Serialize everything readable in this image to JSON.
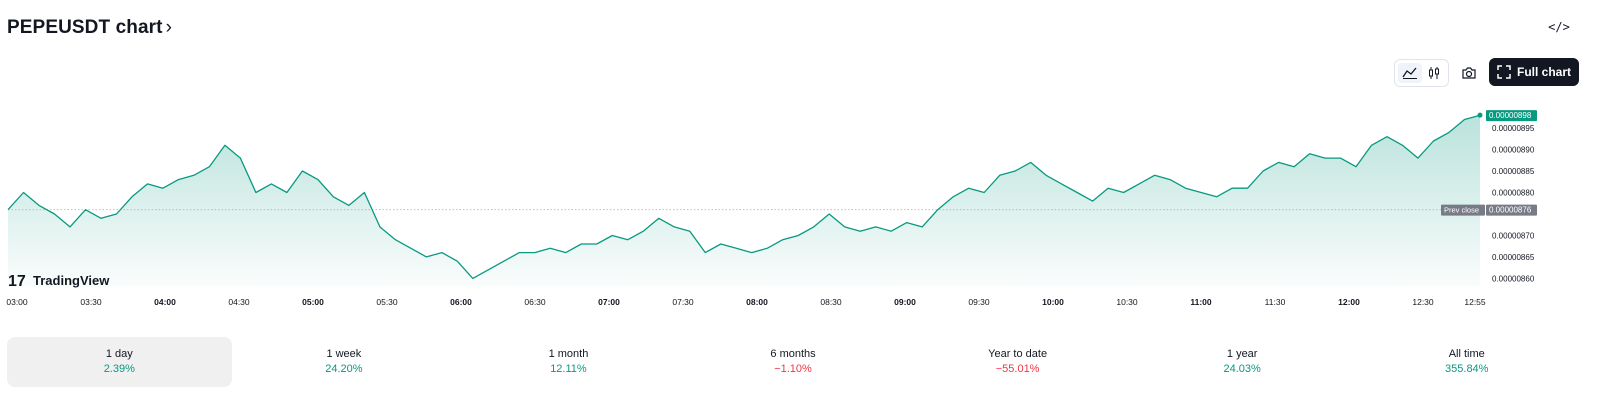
{
  "header": {
    "title": "PEPEUSDT chart",
    "title_chevron": "›",
    "embed_label": "</>"
  },
  "toolbar": {
    "full_chart_label": "Full chart"
  },
  "icons": {
    "line": "line-chart-icon",
    "candle": "candlestick-icon",
    "camera": "camera-icon",
    "fullscreen": "fullscreen-icon"
  },
  "brand": {
    "logo_text": "TradingView"
  },
  "colors": {
    "line": "#089981",
    "fill": "#089981",
    "current_tag": "#089981",
    "prev_tag": "#787b86",
    "positive": "#089981",
    "negative": "#f23645"
  },
  "chart_data": {
    "type": "area",
    "symbol": "PEPEUSDT",
    "x_ticks": [
      {
        "label": "03:00",
        "bold": false
      },
      {
        "label": "03:30",
        "bold": false
      },
      {
        "label": "04:00",
        "bold": true
      },
      {
        "label": "04:30",
        "bold": false
      },
      {
        "label": "05:00",
        "bold": true
      },
      {
        "label": "05:30",
        "bold": false
      },
      {
        "label": "06:00",
        "bold": true
      },
      {
        "label": "06:30",
        "bold": false
      },
      {
        "label": "07:00",
        "bold": true
      },
      {
        "label": "07:30",
        "bold": false
      },
      {
        "label": "08:00",
        "bold": true
      },
      {
        "label": "08:30",
        "bold": false
      },
      {
        "label": "09:00",
        "bold": true
      },
      {
        "label": "09:30",
        "bold": false
      },
      {
        "label": "10:00",
        "bold": true
      },
      {
        "label": "10:30",
        "bold": false
      },
      {
        "label": "11:00",
        "bold": true
      },
      {
        "label": "11:30",
        "bold": false
      },
      {
        "label": "12:00",
        "bold": true
      },
      {
        "label": "12:30",
        "bold": false
      },
      {
        "label": "12:55",
        "bold": false
      }
    ],
    "y_ticks": [
      "0.00000895",
      "0.00000890",
      "0.00000885",
      "0.00000880",
      "0.00000870",
      "0.00000865",
      "0.00000860"
    ],
    "ylim": [
      8.58e-06,
      9.02e-06
    ],
    "current_price": "0.00000898",
    "prev_close_label": "Prev close",
    "prev_close_value": "0.00000876",
    "series": [
      {
        "values": [
          8.76e-06,
          8.8e-06,
          8.77e-06,
          8.75e-06,
          8.72e-06,
          8.76e-06,
          8.74e-06,
          8.75e-06,
          8.79e-06,
          8.82e-06,
          8.81e-06,
          8.83e-06,
          8.84e-06,
          8.86e-06,
          8.91e-06,
          8.88e-06,
          8.8e-06,
          8.82e-06,
          8.8e-06,
          8.85e-06,
          8.83e-06,
          8.79e-06,
          8.77e-06,
          8.8e-06,
          8.72e-06,
          8.69e-06,
          8.67e-06,
          8.65e-06,
          8.66e-06,
          8.64e-06,
          8.6e-06,
          8.62e-06,
          8.64e-06,
          8.66e-06,
          8.66e-06,
          8.67e-06,
          8.66e-06,
          8.68e-06,
          8.68e-06,
          8.7e-06,
          8.69e-06,
          8.71e-06,
          8.74e-06,
          8.72e-06,
          8.71e-06,
          8.66e-06,
          8.68e-06,
          8.67e-06,
          8.66e-06,
          8.67e-06,
          8.69e-06,
          8.7e-06,
          8.72e-06,
          8.75e-06,
          8.72e-06,
          8.71e-06,
          8.72e-06,
          8.71e-06,
          8.73e-06,
          8.72e-06,
          8.76e-06,
          8.79e-06,
          8.81e-06,
          8.8e-06,
          8.84e-06,
          8.85e-06,
          8.87e-06,
          8.84e-06,
          8.82e-06,
          8.8e-06,
          8.78e-06,
          8.81e-06,
          8.8e-06,
          8.82e-06,
          8.84e-06,
          8.83e-06,
          8.81e-06,
          8.8e-06,
          8.79e-06,
          8.81e-06,
          8.81e-06,
          8.85e-06,
          8.87e-06,
          8.86e-06,
          8.89e-06,
          8.88e-06,
          8.88e-06,
          8.86e-06,
          8.91e-06,
          8.93e-06,
          8.91e-06,
          8.88e-06,
          8.92e-06,
          8.94e-06,
          8.97e-06,
          8.98e-06
        ]
      }
    ]
  },
  "ranges": [
    {
      "label": "1 day",
      "value": "2.39%",
      "sign": "pos",
      "active": true
    },
    {
      "label": "1 week",
      "value": "24.20%",
      "sign": "pos",
      "active": false
    },
    {
      "label": "1 month",
      "value": "12.11%",
      "sign": "pos",
      "active": false
    },
    {
      "label": "6 months",
      "value": "−1.10%",
      "sign": "neg",
      "active": false
    },
    {
      "label": "Year to date",
      "value": "−55.01%",
      "sign": "neg",
      "active": false
    },
    {
      "label": "1 year",
      "value": "24.03%",
      "sign": "pos",
      "active": false
    },
    {
      "label": "All time",
      "value": "355.84%",
      "sign": "pos",
      "active": false
    }
  ]
}
